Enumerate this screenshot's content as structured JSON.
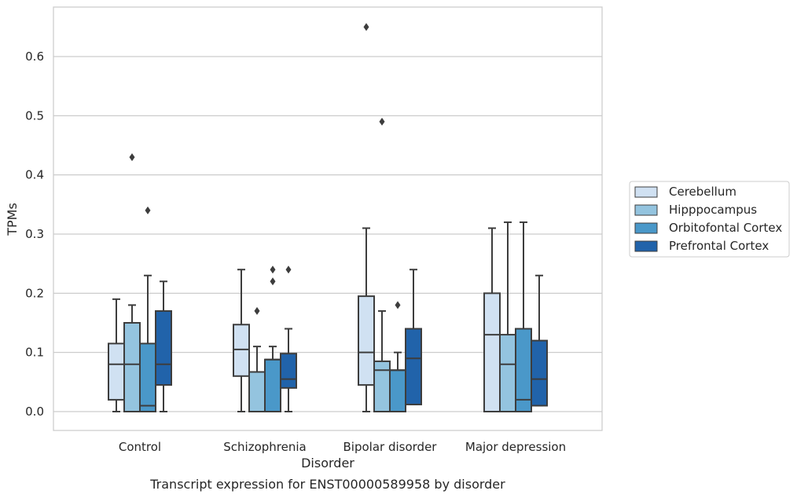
{
  "chart_data": {
    "type": "box",
    "caption": "Transcript expression for ENST00000589958 by disorder",
    "xlabel": "Disorder",
    "ylabel": "TPMs",
    "ylim": [
      -0.032,
      0.685
    ],
    "yticks": [
      "0.0",
      "0.1",
      "0.2",
      "0.3",
      "0.4",
      "0.5",
      "0.6"
    ],
    "ytick_values": [
      0.0,
      0.1,
      0.2,
      0.3,
      0.4,
      0.5,
      0.6
    ],
    "grid": "horizontal",
    "legend_position": "right",
    "categories": [
      "Control",
      "Schizophrenia",
      "Bipolar disorder",
      "Major depression"
    ],
    "series": [
      {
        "name": "Cerebellum",
        "color": "#d0e1f2",
        "boxes": [
          {
            "whislo": 0.0,
            "q1": 0.02,
            "med": 0.08,
            "q3": 0.115,
            "whishi": 0.19,
            "fliers": []
          },
          {
            "whislo": 0.0,
            "q1": 0.06,
            "med": 0.105,
            "q3": 0.147,
            "whishi": 0.24,
            "fliers": []
          },
          {
            "whislo": 0.0,
            "q1": 0.045,
            "med": 0.1,
            "q3": 0.195,
            "whishi": 0.31,
            "fliers": [
              0.65
            ]
          },
          {
            "whislo": 0.0,
            "q1": 0.0,
            "med": 0.13,
            "q3": 0.2,
            "whishi": 0.31,
            "fliers": []
          }
        ]
      },
      {
        "name": "Hipppocampus",
        "color": "#94c4df",
        "boxes": [
          {
            "whislo": 0.0,
            "q1": 0.0,
            "med": 0.08,
            "q3": 0.15,
            "whishi": 0.18,
            "fliers": [
              0.43
            ]
          },
          {
            "whislo": 0.0,
            "q1": 0.0,
            "med": 0.067,
            "q3": 0.067,
            "whishi": 0.11,
            "fliers": [
              0.17
            ]
          },
          {
            "whislo": 0.0,
            "q1": 0.0,
            "med": 0.07,
            "q3": 0.085,
            "whishi": 0.17,
            "fliers": [
              0.49
            ]
          },
          {
            "whislo": 0.0,
            "q1": 0.0,
            "med": 0.08,
            "q3": 0.13,
            "whishi": 0.32,
            "fliers": []
          }
        ]
      },
      {
        "name": "Orbitofontal Cortex",
        "color": "#4a98c9",
        "boxes": [
          {
            "whislo": 0.0,
            "q1": 0.0,
            "med": 0.01,
            "q3": 0.115,
            "whishi": 0.23,
            "fliers": [
              0.34
            ]
          },
          {
            "whislo": 0.0,
            "q1": 0.0,
            "med": 0.088,
            "q3": 0.088,
            "whishi": 0.11,
            "fliers": [
              0.22,
              0.24
            ]
          },
          {
            "whislo": 0.0,
            "q1": 0.0,
            "med": 0.07,
            "q3": 0.07,
            "whishi": 0.1,
            "fliers": [
              0.18
            ]
          },
          {
            "whislo": 0.0,
            "q1": 0.0,
            "med": 0.02,
            "q3": 0.14,
            "whishi": 0.32,
            "fliers": []
          }
        ]
      },
      {
        "name": "Prefrontal Cortex",
        "color": "#2163aa",
        "boxes": [
          {
            "whislo": 0.0,
            "q1": 0.045,
            "med": 0.08,
            "q3": 0.17,
            "whishi": 0.22,
            "fliers": []
          },
          {
            "whislo": 0.0,
            "q1": 0.04,
            "med": 0.055,
            "q3": 0.098,
            "whishi": 0.14,
            "fliers": [
              0.24
            ]
          },
          {
            "whislo": 0.012,
            "q1": 0.012,
            "med": 0.09,
            "q3": 0.14,
            "whishi": 0.24,
            "fliers": []
          },
          {
            "whislo": 0.01,
            "q1": 0.01,
            "med": 0.055,
            "q3": 0.12,
            "whishi": 0.23,
            "fliers": []
          }
        ]
      }
    ]
  }
}
